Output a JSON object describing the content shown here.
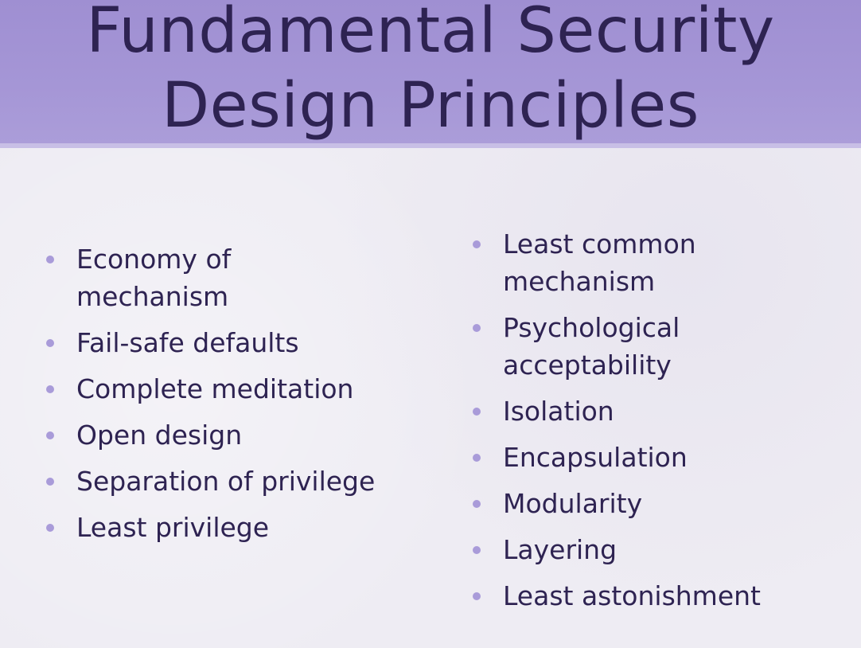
{
  "slide": {
    "title_line1": "Fundamental Security",
    "title_line2": "Design Principles",
    "left_items": [
      "Economy of mechanism",
      "Fail-safe defaults",
      "Complete meditation",
      "Open design",
      "Separation of privilege",
      "Least privilege"
    ],
    "right_items": [
      "Least common mechanism",
      "Psychological acceptability",
      "Isolation",
      "Encapsulation",
      "Modularity",
      "Layering",
      "Least astonishment"
    ]
  },
  "colors": {
    "title_band": "#a596d6",
    "text": "#2e2352",
    "bullet": "#a99bd9",
    "background": "#eeecf3"
  }
}
